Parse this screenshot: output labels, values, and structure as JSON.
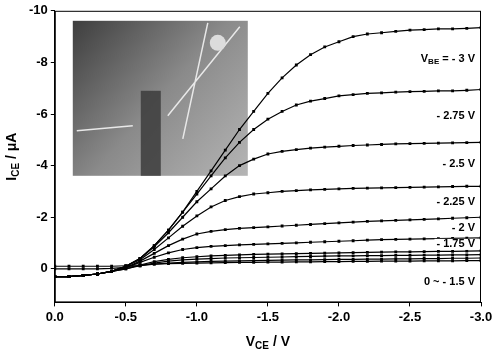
{
  "chart_data": {
    "type": "line",
    "x_label": "VCE / V",
    "y_label": "ICE / μA",
    "xlim": [
      0,
      -3.0
    ],
    "ylim": [
      1.3,
      -10
    ],
    "xticks": [
      {
        "value": 0,
        "label": "0.0"
      },
      {
        "value": -0.5,
        "label": "-0.5"
      },
      {
        "value": -1.0,
        "label": "-1.0"
      },
      {
        "value": -1.5,
        "label": "-1.5"
      },
      {
        "value": -2.0,
        "label": "-2.0"
      },
      {
        "value": -2.5,
        "label": "-2.5"
      },
      {
        "value": -3.0,
        "label": "-3.0"
      }
    ],
    "yticks": [
      -10,
      -8,
      -6,
      -4,
      -2,
      0
    ],
    "grid": false,
    "color": "#000000",
    "marker": "square",
    "line_style": "solid",
    "x": [
      0,
      -0.1,
      -0.2,
      -0.3,
      -0.4,
      -0.5,
      -0.6,
      -0.7,
      -0.8,
      -0.9,
      -1.0,
      -1.1,
      -1.2,
      -1.3,
      -1.4,
      -1.5,
      -1.6,
      -1.7,
      -1.8,
      -1.9,
      -2.0,
      -2.1,
      -2.2,
      -2.3,
      -2.4,
      -2.5,
      -2.6,
      -2.7,
      -2.8,
      -2.9,
      -3.0
    ],
    "series": [
      {
        "name": "VBE = - 3 V",
        "values": [
          0.3,
          0.3,
          0.25,
          0.2,
          0.1,
          -0.1,
          -0.4,
          -0.9,
          -1.5,
          -2.2,
          -3.0,
          -3.8,
          -4.6,
          -5.4,
          -6.1,
          -6.8,
          -7.4,
          -7.9,
          -8.3,
          -8.6,
          -8.8,
          -9.0,
          -9.1,
          -9.15,
          -9.2,
          -9.25,
          -9.27,
          -9.3,
          -9.3,
          -9.32,
          -9.35
        ]
      },
      {
        "name": "- 2.75 V",
        "values": [
          0.3,
          0.3,
          0.25,
          0.2,
          0.1,
          -0.1,
          -0.4,
          -0.9,
          -1.5,
          -2.2,
          -2.9,
          -3.6,
          -4.3,
          -4.9,
          -5.4,
          -5.8,
          -6.1,
          -6.35,
          -6.5,
          -6.6,
          -6.7,
          -6.75,
          -6.8,
          -6.82,
          -6.85,
          -6.87,
          -6.88,
          -6.9,
          -6.9,
          -6.92,
          -6.95
        ]
      },
      {
        "name": "- 2.5 V",
        "values": [
          0.3,
          0.3,
          0.25,
          0.2,
          0.1,
          -0.1,
          -0.4,
          -0.85,
          -1.4,
          -2.0,
          -2.6,
          -3.1,
          -3.6,
          -4.0,
          -4.25,
          -4.45,
          -4.55,
          -4.62,
          -4.68,
          -4.72,
          -4.75,
          -4.78,
          -4.8,
          -4.82,
          -4.84,
          -4.85,
          -4.86,
          -4.87,
          -4.88,
          -4.89,
          -4.9
        ]
      },
      {
        "name": "- 2.25 V",
        "values": [
          0.3,
          0.3,
          0.25,
          0.2,
          0.1,
          -0.1,
          -0.35,
          -0.75,
          -1.2,
          -1.65,
          -2.05,
          -2.4,
          -2.65,
          -2.8,
          -2.9,
          -2.95,
          -3.0,
          -3.03,
          -3.06,
          -3.08,
          -3.1,
          -3.12,
          -3.13,
          -3.14,
          -3.15,
          -3.16,
          -3.17,
          -3.18,
          -3.19,
          -3.2,
          -3.2
        ]
      },
      {
        "name": "- 2 V",
        "values": [
          0.3,
          0.3,
          0.25,
          0.2,
          0.1,
          -0.05,
          -0.3,
          -0.6,
          -0.9,
          -1.15,
          -1.35,
          -1.45,
          -1.52,
          -1.57,
          -1.6,
          -1.63,
          -1.66,
          -1.69,
          -1.72,
          -1.75,
          -1.78,
          -1.81,
          -1.84,
          -1.86,
          -1.88,
          -1.9,
          -1.92,
          -1.94,
          -1.96,
          -1.98,
          -2.0
        ]
      },
      {
        "name": "- 1.75 V",
        "values": [
          0.3,
          0.3,
          0.25,
          0.2,
          0.1,
          -0.05,
          -0.25,
          -0.45,
          -0.62,
          -0.75,
          -0.82,
          -0.87,
          -0.9,
          -0.93,
          -0.95,
          -0.97,
          -0.99,
          -1.01,
          -1.03,
          -1.05,
          -1.07,
          -1.09,
          -1.11,
          -1.13,
          -1.14,
          -1.15,
          -1.16,
          -1.17,
          -1.18,
          -1.19,
          -1.2
        ]
      },
      {
        "values": [
          0.3,
          0.3,
          0.25,
          0.2,
          0.1,
          0,
          -0.15,
          -0.28,
          -0.37,
          -0.43,
          -0.47,
          -0.5,
          -0.52,
          -0.54,
          -0.56,
          -0.57,
          -0.58,
          -0.59,
          -0.6,
          -0.61,
          -0.62,
          -0.63,
          -0.64,
          -0.65,
          -0.66,
          -0.66,
          -0.67,
          -0.68,
          -0.68,
          -0.69,
          -0.7
        ]
      },
      {
        "values": [
          0.3,
          0.3,
          0.25,
          0.2,
          0.1,
          0,
          -0.12,
          -0.22,
          -0.3,
          -0.35,
          -0.38,
          -0.4,
          -0.42,
          -0.43,
          -0.44,
          -0.45,
          -0.46,
          -0.47,
          -0.48,
          -0.49,
          -0.5,
          -0.5,
          -0.51,
          -0.51,
          -0.52,
          -0.52,
          -0.53,
          -0.53,
          -0.54,
          -0.54,
          -0.55
        ]
      },
      {
        "values": [
          0,
          0,
          0,
          0,
          -0.02,
          -0.06,
          -0.12,
          -0.18,
          -0.22,
          -0.25,
          -0.27,
          -0.29,
          -0.3,
          -0.31,
          -0.32,
          -0.33,
          -0.34,
          -0.35,
          -0.35,
          -0.36,
          -0.37,
          -0.37,
          -0.38,
          -0.38,
          -0.39,
          -0.39,
          -0.4,
          -0.4,
          -0.41,
          -0.41,
          -0.42
        ]
      },
      {
        "name": "0 ~ - 1.5 V",
        "values": [
          -0.1,
          -0.1,
          -0.1,
          -0.1,
          -0.1,
          -0.12,
          -0.15,
          -0.18,
          -0.2,
          -0.21,
          -0.22,
          -0.23,
          -0.24,
          -0.25,
          -0.25,
          -0.26,
          -0.26,
          -0.27,
          -0.27,
          -0.28,
          -0.28,
          -0.29,
          -0.29,
          -0.3,
          -0.3,
          -0.3,
          -0.31,
          -0.31,
          -0.31,
          -0.32,
          -0.32
        ]
      }
    ]
  }
}
